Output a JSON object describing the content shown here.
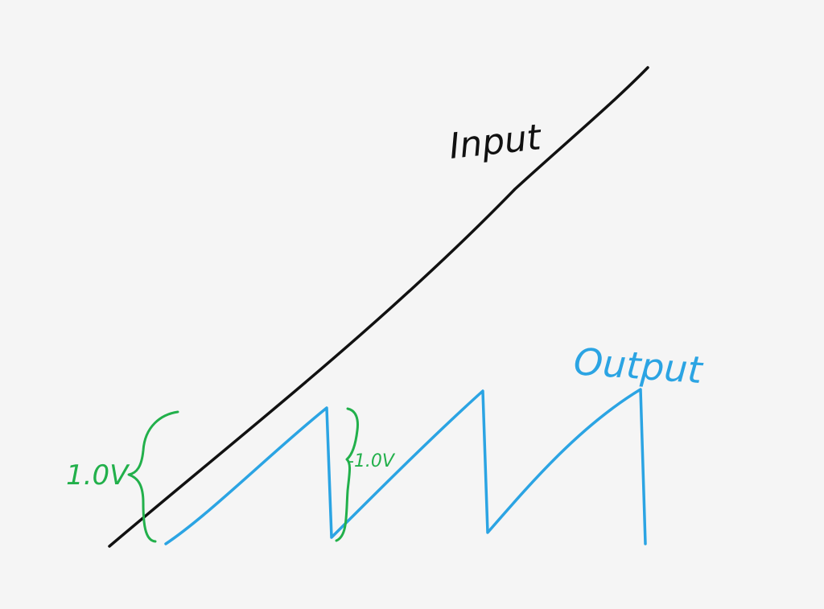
{
  "labels": {
    "input": "Input",
    "output": "Output",
    "amplitude_left": "1.0V",
    "amplitude_mid": "-1.0V"
  },
  "colors": {
    "background": "#f5f5f5",
    "input": "#111111",
    "output": "#2ba4e3",
    "annotation": "#22b04b"
  }
}
